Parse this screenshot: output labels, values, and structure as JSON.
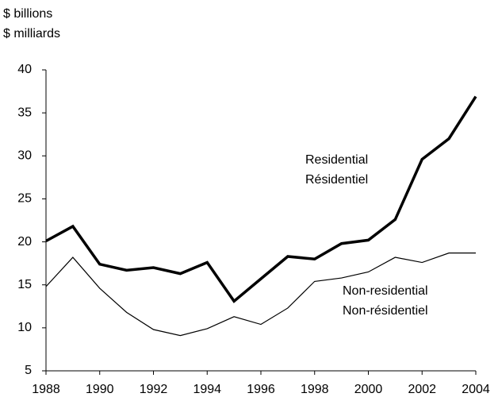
{
  "chart_data": {
    "type": "line",
    "y_label": [
      "$ billions",
      "$ milliards"
    ],
    "x": [
      1988,
      1989,
      1990,
      1991,
      1992,
      1993,
      1994,
      1995,
      1996,
      1997,
      1998,
      1999,
      2000,
      2001,
      2002,
      2003,
      2004
    ],
    "series": [
      {
        "labels": [
          "Residential",
          "Résidentiel"
        ],
        "color": "#000000",
        "width": 3.5,
        "values": [
          20.1,
          21.8,
          17.4,
          16.7,
          17.0,
          16.3,
          17.6,
          13.1,
          15.7,
          18.3,
          18.0,
          19.8,
          20.2,
          22.6,
          29.6,
          32.0,
          36.9
        ]
      },
      {
        "labels": [
          "Non-residential",
          "Non-résidentiel"
        ],
        "color": "#000000",
        "width": 1.2,
        "values": [
          14.8,
          18.2,
          14.6,
          11.8,
          9.8,
          9.1,
          9.9,
          11.3,
          10.4,
          12.3,
          15.4,
          15.8,
          16.5,
          18.2,
          17.6,
          18.7,
          18.7
        ]
      }
    ],
    "xlim": [
      1988,
      2004
    ],
    "xticks": [
      1988,
      1990,
      1992,
      1994,
      1996,
      1998,
      2000,
      2002,
      2004
    ],
    "ylim": [
      5,
      40
    ],
    "yticks": [
      5,
      10,
      15,
      20,
      25,
      30,
      35,
      40
    ]
  }
}
